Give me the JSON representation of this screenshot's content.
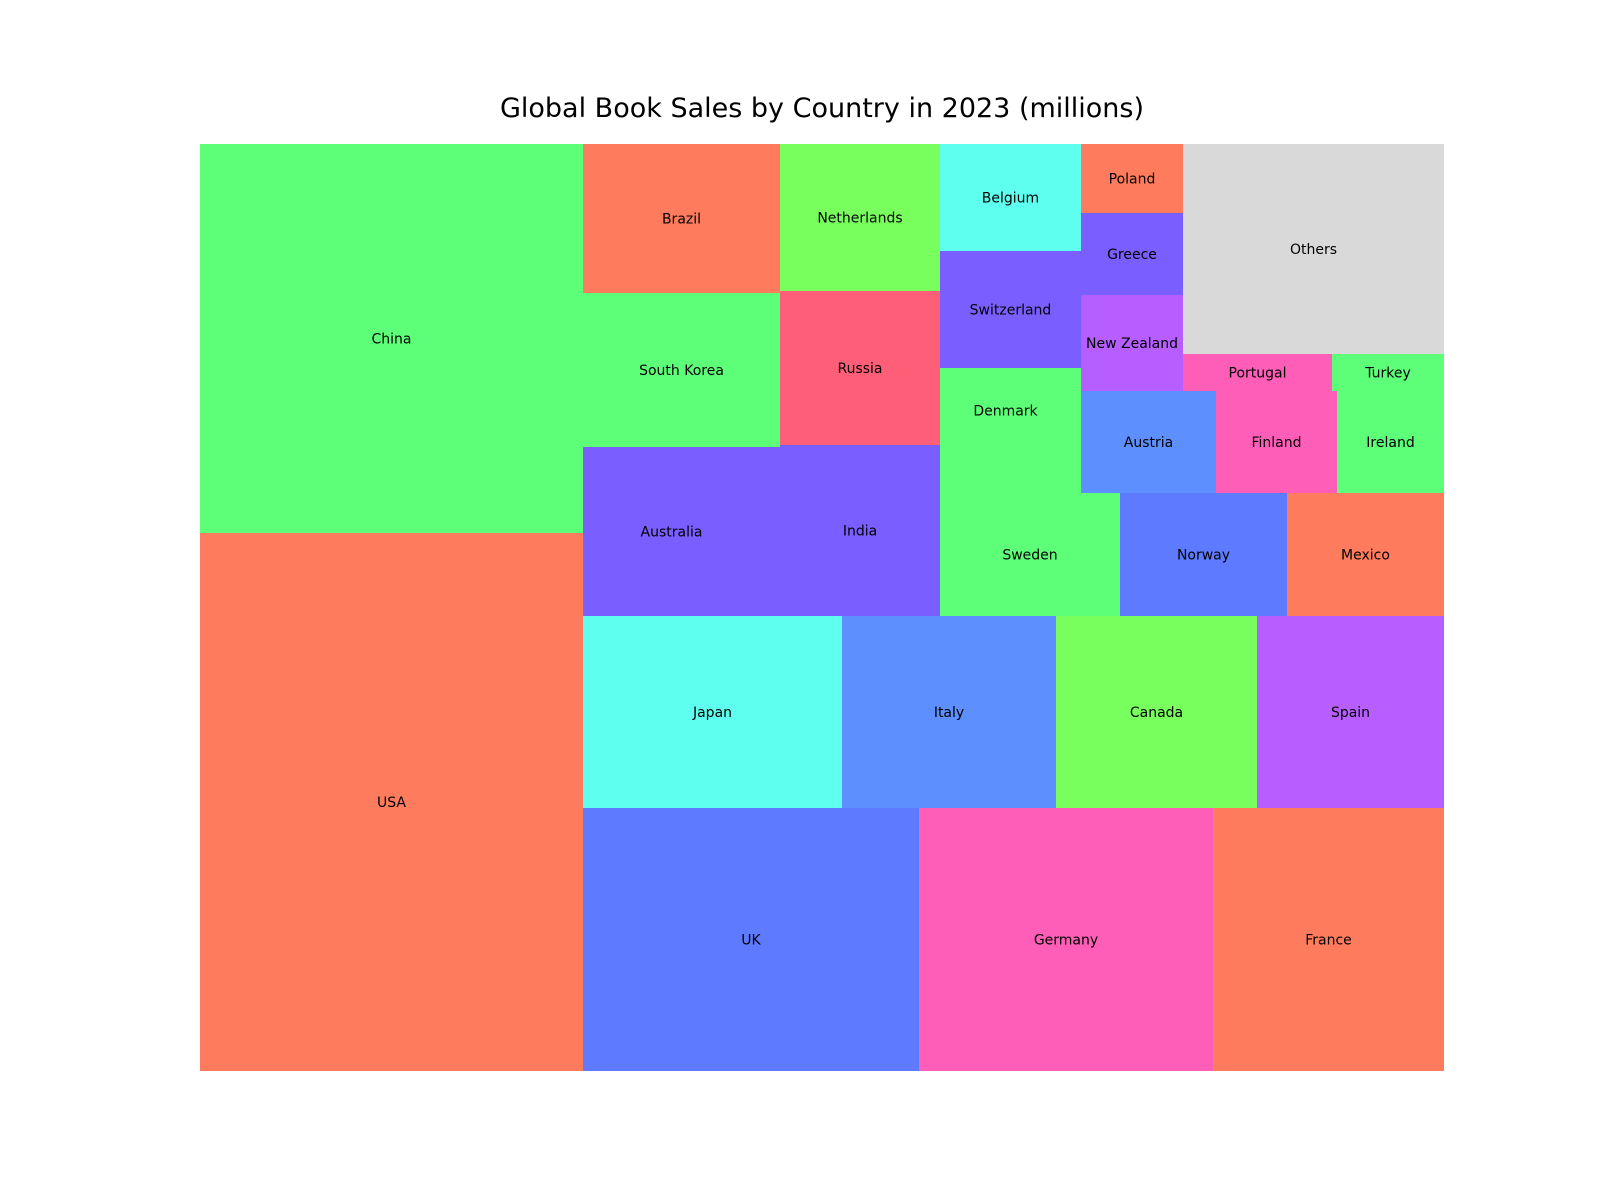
{
  "chart_data": {
    "type": "treemap",
    "title": "Global Book Sales by Country in 2023 (millions)",
    "cells": [
      {
        "label": "USA",
        "value": 540,
        "color": "#ff7b5e"
      },
      {
        "label": "China",
        "value": 390,
        "color": "#5eff78"
      },
      {
        "label": "UK",
        "value": 232,
        "color": "#5e7bff"
      },
      {
        "label": "Germany",
        "value": 203,
        "color": "#ff5eb8"
      },
      {
        "label": "France",
        "value": 159,
        "color": "#ff7b5e"
      },
      {
        "label": "Japan",
        "value": 130,
        "color": "#5effef"
      },
      {
        "label": "Italy",
        "value": 108,
        "color": "#5e8fff"
      },
      {
        "label": "Canada",
        "value": 101,
        "color": "#78ff5e"
      },
      {
        "label": "Spain",
        "value": 94,
        "color": "#b65eff"
      },
      {
        "label": "Australia",
        "value": 87,
        "color": "#7b5eff"
      },
      {
        "label": "India",
        "value": 72,
        "color": "#7b5eff"
      },
      {
        "label": "South Korea",
        "value": 79,
        "color": "#5eff78"
      },
      {
        "label": "Brazil",
        "value": 76,
        "color": "#ff7b5e"
      },
      {
        "label": "Russia",
        "value": 64,
        "color": "#ff5e78"
      },
      {
        "label": "Netherlands",
        "value": 62,
        "color": "#78ff5e"
      },
      {
        "label": "Sweden",
        "value": 58,
        "color": "#5eff78"
      },
      {
        "label": "Norway",
        "value": 54,
        "color": "#5e7bff"
      },
      {
        "label": "Mexico",
        "value": 51,
        "color": "#ff7b5e"
      },
      {
        "label": "Denmark",
        "value": 50,
        "color": "#5eff78"
      },
      {
        "label": "Switzerland",
        "value": 44,
        "color": "#7b5eff"
      },
      {
        "label": "Belgium",
        "value": 40,
        "color": "#5effef"
      },
      {
        "label": "Austria",
        "value": 36,
        "color": "#5e8fff"
      },
      {
        "label": "Finland",
        "value": 33,
        "color": "#ff5eb8"
      },
      {
        "label": "Ireland",
        "value": 29,
        "color": "#5eff78"
      },
      {
        "label": "New Zealand",
        "value": 26,
        "color": "#b65eff"
      },
      {
        "label": "Greece",
        "value": 23,
        "color": "#7b5eff"
      },
      {
        "label": "Poland",
        "value": 19,
        "color": "#ff7b5e"
      },
      {
        "label": "Portugal",
        "value": 15,
        "color": "#ff5eb8"
      },
      {
        "label": "Turkey",
        "value": 11,
        "color": "#5eff78"
      },
      {
        "label": "Others",
        "value": 148,
        "color": "#d9d9d9"
      }
    ]
  }
}
